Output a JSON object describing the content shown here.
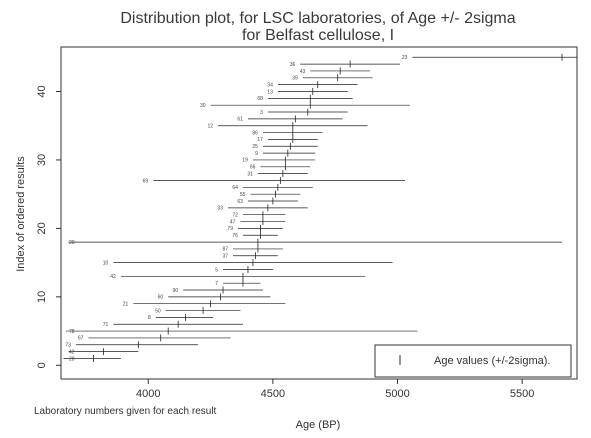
{
  "chart_data": {
    "type": "scatter",
    "title_line1": "Distribution plot, for LSC laboratories, of Age +/- 2sigma",
    "title_line2": "for Belfast cellulose, I",
    "xlabel": "Age (BP)",
    "ylabel": "Index of ordered results",
    "x_ticks": [
      4000,
      4500,
      5000,
      5500
    ],
    "y_ticks": [
      0,
      10,
      20,
      30,
      40
    ],
    "xlim": [
      3650,
      5720
    ],
    "ylim": [
      -2,
      46.5
    ],
    "legend": {
      "label": "Age values (+/-2sigma).",
      "position": "bottom-right"
    },
    "footnote": "Laboratory numbers given for each result",
    "series": [
      {
        "points": [
          {
            "i": 45,
            "lab": "23",
            "age": 5660,
            "lo": 5060,
            "hi": 5720
          },
          {
            "i": 44,
            "lab": "36",
            "age": 4810,
            "lo": 4610,
            "hi": 5010
          },
          {
            "i": 43,
            "lab": "43",
            "age": 4770,
            "lo": 4650,
            "hi": 4890
          },
          {
            "i": 42,
            "lab": "39",
            "age": 4760,
            "lo": 4620,
            "hi": 4900
          },
          {
            "i": 41,
            "lab": "34",
            "age": 4680,
            "lo": 4520,
            "hi": 4840
          },
          {
            "i": 40,
            "lab": "13",
            "age": 4660,
            "lo": 4520,
            "hi": 4800
          },
          {
            "i": 39,
            "lab": "68",
            "age": 4650,
            "lo": 4480,
            "hi": 4820
          },
          {
            "i": 38,
            "lab": "30",
            "age": 4650,
            "lo": 4250,
            "hi": 5050
          },
          {
            "i": 37,
            "lab": "3",
            "age": 4640,
            "lo": 4480,
            "hi": 4800
          },
          {
            "i": 36,
            "lab": "61",
            "age": 4590,
            "lo": 4400,
            "hi": 4780
          },
          {
            "i": 35,
            "lab": "12",
            "age": 4580,
            "lo": 4280,
            "hi": 4880
          },
          {
            "i": 34,
            "lab": "86",
            "age": 4580,
            "lo": 4460,
            "hi": 4700
          },
          {
            "i": 33,
            "lab": "17",
            "age": 4580,
            "lo": 4480,
            "hi": 4680
          },
          {
            "i": 32,
            "lab": "25",
            "age": 4570,
            "lo": 4460,
            "hi": 4680
          },
          {
            "i": 31,
            "lab": "9",
            "age": 4560,
            "lo": 4460,
            "hi": 4670
          },
          {
            "i": 30,
            "lab": "19",
            "age": 4550,
            "lo": 4420,
            "hi": 4670
          },
          {
            "i": 29,
            "lab": "66",
            "age": 4550,
            "lo": 4450,
            "hi": 4650
          },
          {
            "i": 28,
            "lab": "31",
            "age": 4540,
            "lo": 4440,
            "hi": 4640
          },
          {
            "i": 27,
            "lab": "69",
            "age": 4530,
            "lo": 4020,
            "hi": 5030
          },
          {
            "i": 26,
            "lab": "64",
            "age": 4520,
            "lo": 4380,
            "hi": 4660
          },
          {
            "i": 25,
            "lab": "55",
            "age": 4510,
            "lo": 4410,
            "hi": 4610
          },
          {
            "i": 24,
            "lab": "63",
            "age": 4500,
            "lo": 4400,
            "hi": 4600
          },
          {
            "i": 23,
            "lab": "33",
            "age": 4480,
            "lo": 4320,
            "hi": 4640
          },
          {
            "i": 22,
            "lab": "72",
            "age": 4460,
            "lo": 4380,
            "hi": 4550
          },
          {
            "i": 21,
            "lab": "47",
            "age": 4460,
            "lo": 4370,
            "hi": 4550
          },
          {
            "i": 20,
            "lab": "79",
            "age": 4450,
            "lo": 4360,
            "hi": 4540
          },
          {
            "i": 19,
            "lab": "76",
            "age": 4450,
            "lo": 4380,
            "hi": 4520
          },
          {
            "i": 18,
            "lab": "20",
            "age": 4440,
            "lo": 3680,
            "hi": 5660
          },
          {
            "i": 17,
            "lab": "87",
            "age": 4440,
            "lo": 4340,
            "hi": 4540
          },
          {
            "i": 16,
            "lab": "37",
            "age": 4430,
            "lo": 4340,
            "hi": 4520
          },
          {
            "i": 15,
            "lab": "10",
            "age": 4420,
            "lo": 3860,
            "hi": 4980
          },
          {
            "i": 14,
            "lab": "5",
            "age": 4400,
            "lo": 4300,
            "hi": 4500
          },
          {
            "i": 13,
            "lab": "42",
            "age": 4380,
            "lo": 3890,
            "hi": 4870
          },
          {
            "i": 12,
            "lab": "7",
            "age": 4380,
            "lo": 4300,
            "hi": 4450
          },
          {
            "i": 11,
            "lab": "90",
            "age": 4300,
            "lo": 4140,
            "hi": 4460
          },
          {
            "i": 10,
            "lab": "60",
            "age": 4290,
            "lo": 4080,
            "hi": 4490
          },
          {
            "i": 9,
            "lab": "21",
            "age": 4250,
            "lo": 3940,
            "hi": 4550
          },
          {
            "i": 8,
            "lab": "50",
            "age": 4220,
            "lo": 4070,
            "hi": 4370
          },
          {
            "i": 7,
            "lab": "8",
            "age": 4150,
            "lo": 4030,
            "hi": 4260
          },
          {
            "i": 6,
            "lab": "71",
            "age": 4120,
            "lo": 3860,
            "hi": 4380
          },
          {
            "i": 5,
            "lab": "78",
            "age": 4080,
            "lo": 3670,
            "hi": 5080
          },
          {
            "i": 4,
            "lab": "67",
            "age": 4050,
            "lo": 3760,
            "hi": 4330
          },
          {
            "i": 3,
            "lab": "73",
            "age": 3960,
            "lo": 3710,
            "hi": 4200
          },
          {
            "i": 2,
            "lab": "42",
            "age": 3820,
            "lo": 3680,
            "hi": 3960
          },
          {
            "i": 1,
            "lab": "28",
            "age": 3780,
            "lo": 3660,
            "hi": 3890
          }
        ]
      }
    ]
  }
}
